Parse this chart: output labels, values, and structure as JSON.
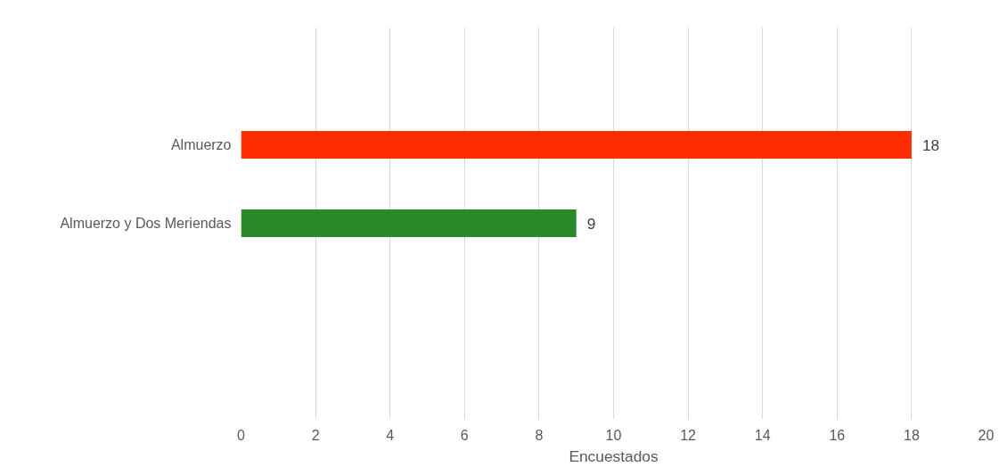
{
  "chart_data": {
    "type": "bar",
    "orientation": "horizontal",
    "categories": [
      null,
      "Almuerzo",
      "Almuerzo y Dos Meriendas",
      null,
      null
    ],
    "values": [
      null,
      18,
      9,
      null,
      null
    ],
    "colors": [
      "#ff2d00",
      "#ff2d00",
      "#2a8a2a",
      "#2a8a2a",
      "#2a8a2a"
    ],
    "xlabel": "Encuestados",
    "xlim": [
      0,
      20
    ],
    "xticks": [
      0,
      2,
      4,
      6,
      8,
      10,
      12,
      14,
      16,
      18,
      20
    ],
    "grid": "x",
    "data_labels": true
  }
}
